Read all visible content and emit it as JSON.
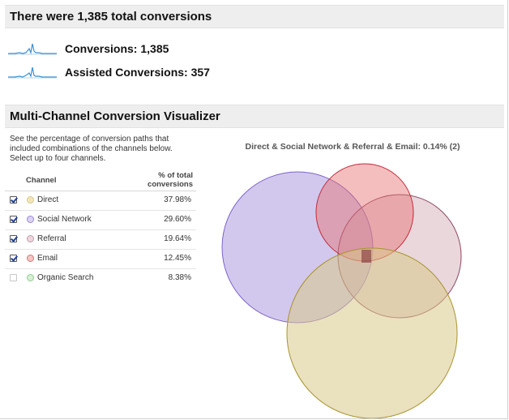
{
  "summary": {
    "title": "There were 1,385 total conversions",
    "metrics": [
      {
        "label": "Conversions: 1,385"
      },
      {
        "label": "Assisted Conversions: 357"
      }
    ]
  },
  "visualizer": {
    "title": "Multi-Channel Conversion Visualizer",
    "description": "See the percentage of conversion paths that included combinations of the channels below. Select up to four channels.",
    "columns": {
      "channel": "Channel",
      "pct_line1": "% of total",
      "pct_line2": "conversions"
    },
    "channels": [
      {
        "name": "Direct",
        "pct": "37.98%",
        "checked": true,
        "color": "#d8c98a",
        "dot_fill": "#f3e6b8"
      },
      {
        "name": "Social Network",
        "pct": "29.60%",
        "checked": true,
        "color": "#9b86d6",
        "dot_fill": "#dcd3f4"
      },
      {
        "name": "Referral",
        "pct": "19.64%",
        "checked": true,
        "color": "#c79aa8",
        "dot_fill": "#ecd7de"
      },
      {
        "name": "Email",
        "pct": "12.45%",
        "checked": true,
        "color": "#e07070",
        "dot_fill": "#f6c7c7"
      },
      {
        "name": "Organic Search",
        "pct": "8.38%",
        "checked": false,
        "color": "#8fcf8f",
        "dot_fill": "#d6f0d6"
      }
    ],
    "venn_caption": "Direct & Social Network & Referral & Email: 0.14% (2)"
  }
}
